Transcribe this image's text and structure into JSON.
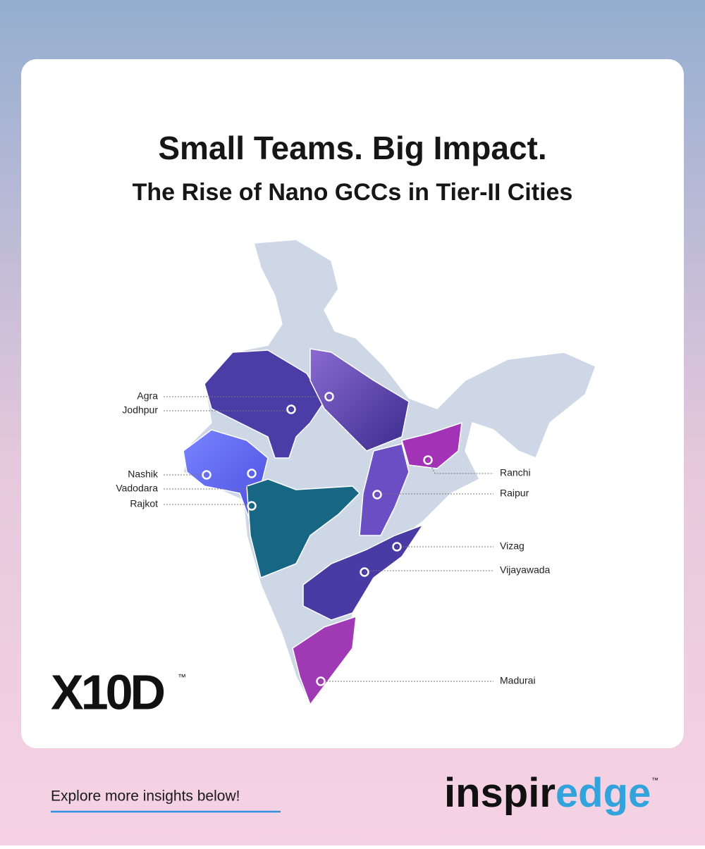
{
  "header": {
    "title": "Small Teams. Big Impact.",
    "subtitle": "The Rise of Nano GCCs in Tier-II Cities"
  },
  "cities": [
    {
      "label": "Agra"
    },
    {
      "label": "Jodhpur"
    },
    {
      "label": "Nashik"
    },
    {
      "label": "Vadodara"
    },
    {
      "label": "Rajkot"
    },
    {
      "label": "Ranchi"
    },
    {
      "label": "Raipur"
    },
    {
      "label": "Vizag"
    },
    {
      "label": "Vijayawada"
    },
    {
      "label": "Madurai"
    }
  ],
  "logos": {
    "x10d": "X10D",
    "x10d_tm": "™",
    "inspir": "inspir",
    "edge": "edge",
    "inspiredge_tm": "™"
  },
  "footer": {
    "cta": "Explore more insights below!"
  }
}
